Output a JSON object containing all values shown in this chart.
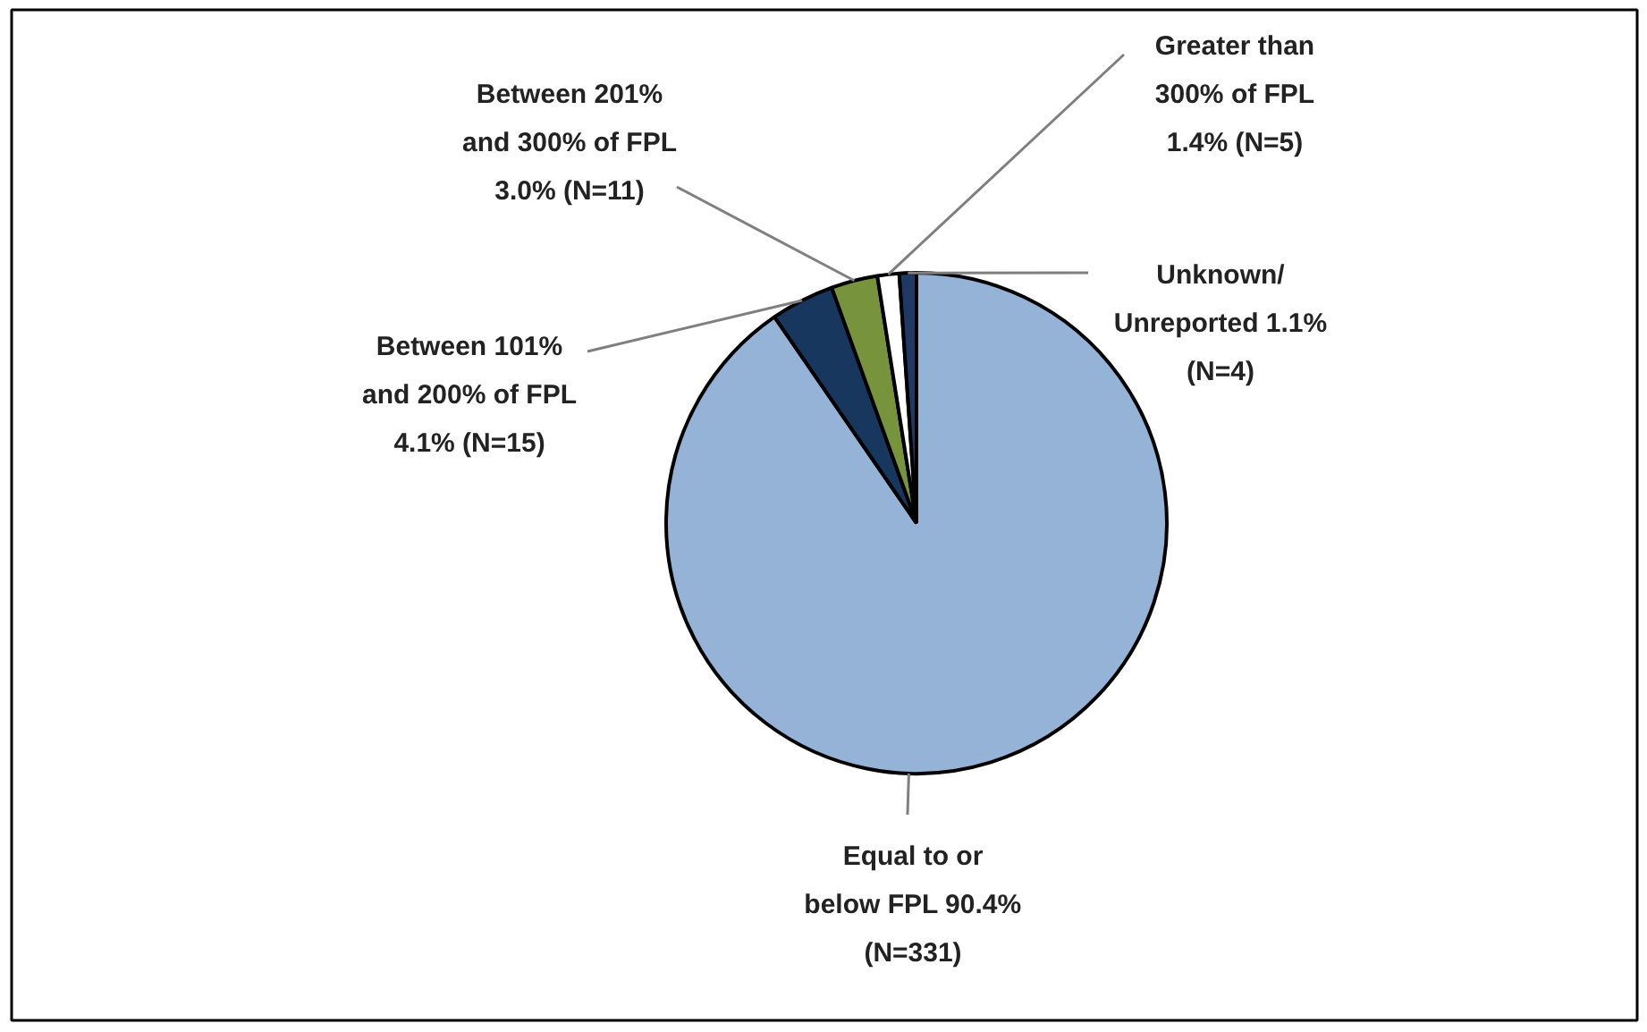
{
  "chart_data": {
    "type": "pie",
    "categories": [
      "Equal to or below FPL",
      "Between 101% and 200% of FPL",
      "Between 201% and 300% of FPL",
      "Greater than 300% of FPL",
      "Unknown/ Unreported"
    ],
    "values": [
      90.4,
      4.1,
      3.0,
      1.4,
      1.1
    ],
    "colors": [
      "#95b3d7",
      "#17375e",
      "#77933c",
      "#ffffff",
      "#1f3864"
    ],
    "value_labels": [
      "90.4% (N=331)",
      "4.1% (N=15)",
      "3.0% (N=11)",
      "1.4% (N=5)",
      "1.1% (N=4)"
    ]
  }
}
